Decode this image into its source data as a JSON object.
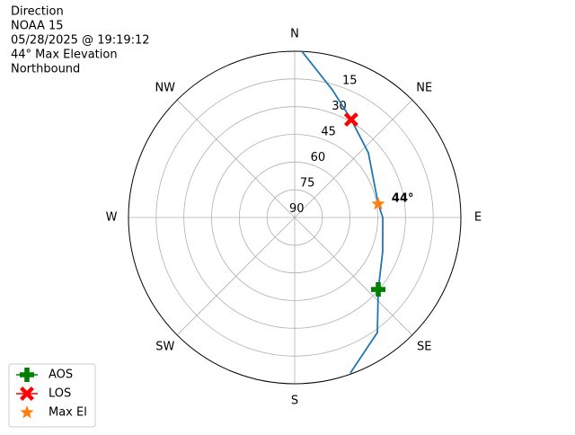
{
  "chart_data": {
    "type": "polar",
    "header_lines": [
      "Direction",
      "NOAA 15",
      "05/28/2025 @ 19:19:12",
      "44° Max Elevation",
      "Northbound"
    ],
    "theta_ticks": [
      {
        "value": 0,
        "label": "N"
      },
      {
        "value": 45,
        "label": "NE"
      },
      {
        "value": 90,
        "label": "E"
      },
      {
        "value": 135,
        "label": "SE"
      },
      {
        "value": 180,
        "label": "S"
      },
      {
        "value": 225,
        "label": "SW"
      },
      {
        "value": 270,
        "label": "W"
      },
      {
        "value": 315,
        "label": "NW"
      }
    ],
    "rlim": [
      90,
      0
    ],
    "rticks": [
      15,
      30,
      45,
      60,
      75,
      90
    ],
    "grid": true,
    "track": {
      "color": "#1f77b4",
      "theta": [
        160.3,
        144.3,
        130.7,
        111.2,
        90,
        80.8,
        48.7,
        30,
        16.5,
        2.5
      ],
      "r": [
        0.6,
        13.3,
        30.3,
        38.9,
        42.3,
        44.2,
        36.9,
        28.8,
        18,
        0
      ]
    },
    "series": [
      {
        "name": "AOS",
        "color": "#008000",
        "marker": "plus",
        "theta": 130.7,
        "r": 30.3
      },
      {
        "name": "LOS",
        "color": "#ff0000",
        "marker": "x",
        "theta": 30,
        "r": 28.8
      },
      {
        "name": "Max El",
        "color": "#ff7f0e",
        "marker": "star",
        "theta": 80.8,
        "r": 44.2
      }
    ],
    "annotation": "44°",
    "legend": "lower left"
  }
}
